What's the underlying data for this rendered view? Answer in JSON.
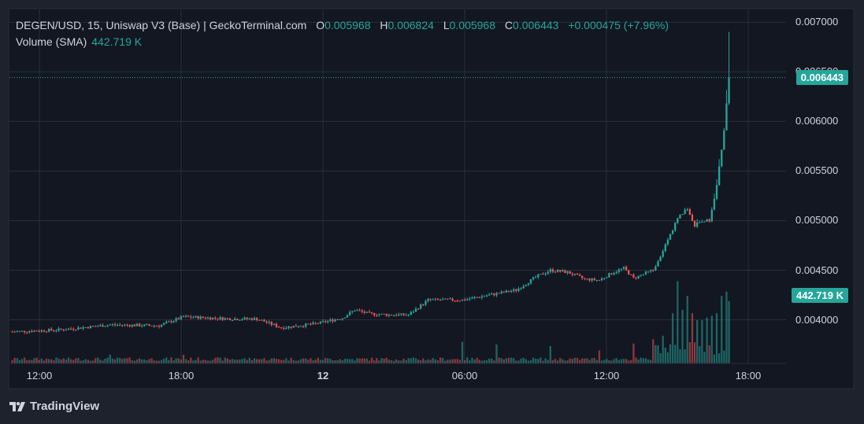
{
  "legend": {
    "symbol": "DEGEN/USD, 15, Uniswap V3 (Base) | GeckoTerminal.com",
    "o_label": "O",
    "o_value": "0.005968",
    "h_label": "H",
    "h_value": "0.006824",
    "l_label": "L",
    "l_value": "0.005968",
    "c_label": "C",
    "c_value": "0.006443",
    "change": "+0.000475 (+7.96%)",
    "volume_label": "Volume (SMA)",
    "volume_value": "442.719 K"
  },
  "price_tag": "0.006443",
  "volume_tag": "442.719 K",
  "brand": {
    "name": "TradingView",
    "logo_icon": "tradingview-logo-icon"
  },
  "colors": {
    "up": "#26a69a",
    "down": "#ef5350",
    "background": "#131722",
    "grid": "#2a2e39"
  },
  "chart_data": {
    "type": "candlestick",
    "y_ticks": [
      "0.007000",
      "0.006500",
      "0.006000",
      "0.005500",
      "0.005000",
      "0.004500",
      "0.004000"
    ],
    "y_tick_values": [
      0.007,
      0.0065,
      0.006,
      0.0055,
      0.005,
      0.0045,
      0.004
    ],
    "ylim": [
      0.00356,
      0.00713
    ],
    "x_ticks": [
      {
        "label": "12:00",
        "bold": false
      },
      {
        "label": "18:00",
        "bold": false
      },
      {
        "label": "12",
        "bold": true
      },
      {
        "label": "06:00",
        "bold": false
      },
      {
        "label": "12:00",
        "bold": false
      },
      {
        "label": "18:00",
        "bold": false
      }
    ],
    "last_close": 0.006443,
    "volume_sma": "442.719 K",
    "anchors": [
      [
        0,
        0.00388
      ],
      [
        20,
        0.0039
      ],
      [
        40,
        0.00395
      ],
      [
        60,
        0.00394
      ],
      [
        70,
        0.00403
      ],
      [
        90,
        0.00401
      ],
      [
        100,
        0.00401
      ],
      [
        110,
        0.00392
      ],
      [
        124,
        0.00396
      ],
      [
        135,
        0.00402
      ],
      [
        140,
        0.0041
      ],
      [
        146,
        0.00406
      ],
      [
        154,
        0.00405
      ],
      [
        162,
        0.00405
      ],
      [
        170,
        0.0042
      ],
      [
        184,
        0.0042
      ],
      [
        206,
        0.0043
      ],
      [
        214,
        0.00443
      ],
      [
        220,
        0.0045
      ],
      [
        227,
        0.00448
      ],
      [
        234,
        0.00441
      ],
      [
        240,
        0.0044
      ],
      [
        245,
        0.00447
      ],
      [
        250,
        0.00452
      ],
      [
        254,
        0.00442
      ],
      [
        262,
        0.0045
      ],
      [
        266,
        0.0047
      ],
      [
        272,
        0.00502
      ],
      [
        276,
        0.00512
      ],
      [
        279,
        0.00495
      ],
      [
        282,
        0.005
      ],
      [
        285,
        0.005
      ],
      [
        288,
        0.00535
      ],
      [
        291,
        0.0059
      ],
      [
        293,
        0.00644
      ]
    ],
    "volume_peaks": [
      [
        40,
        0.1
      ],
      [
        70,
        0.1
      ],
      [
        100,
        0.05
      ],
      [
        184,
        0.25
      ],
      [
        198,
        0.22
      ],
      [
        220,
        0.2
      ],
      [
        240,
        0.15
      ],
      [
        254,
        0.23
      ],
      [
        262,
        0.28
      ],
      [
        266,
        0.32
      ],
      [
        270,
        0.58
      ],
      [
        272,
        0.95
      ],
      [
        274,
        0.62
      ],
      [
        276,
        0.78
      ],
      [
        278,
        0.58
      ],
      [
        280,
        0.5
      ],
      [
        282,
        0.5
      ],
      [
        284,
        0.53
      ],
      [
        286,
        0.55
      ],
      [
        288,
        0.58
      ],
      [
        290,
        0.78
      ],
      [
        292,
        0.83
      ],
      [
        293,
        0.72
      ]
    ]
  }
}
